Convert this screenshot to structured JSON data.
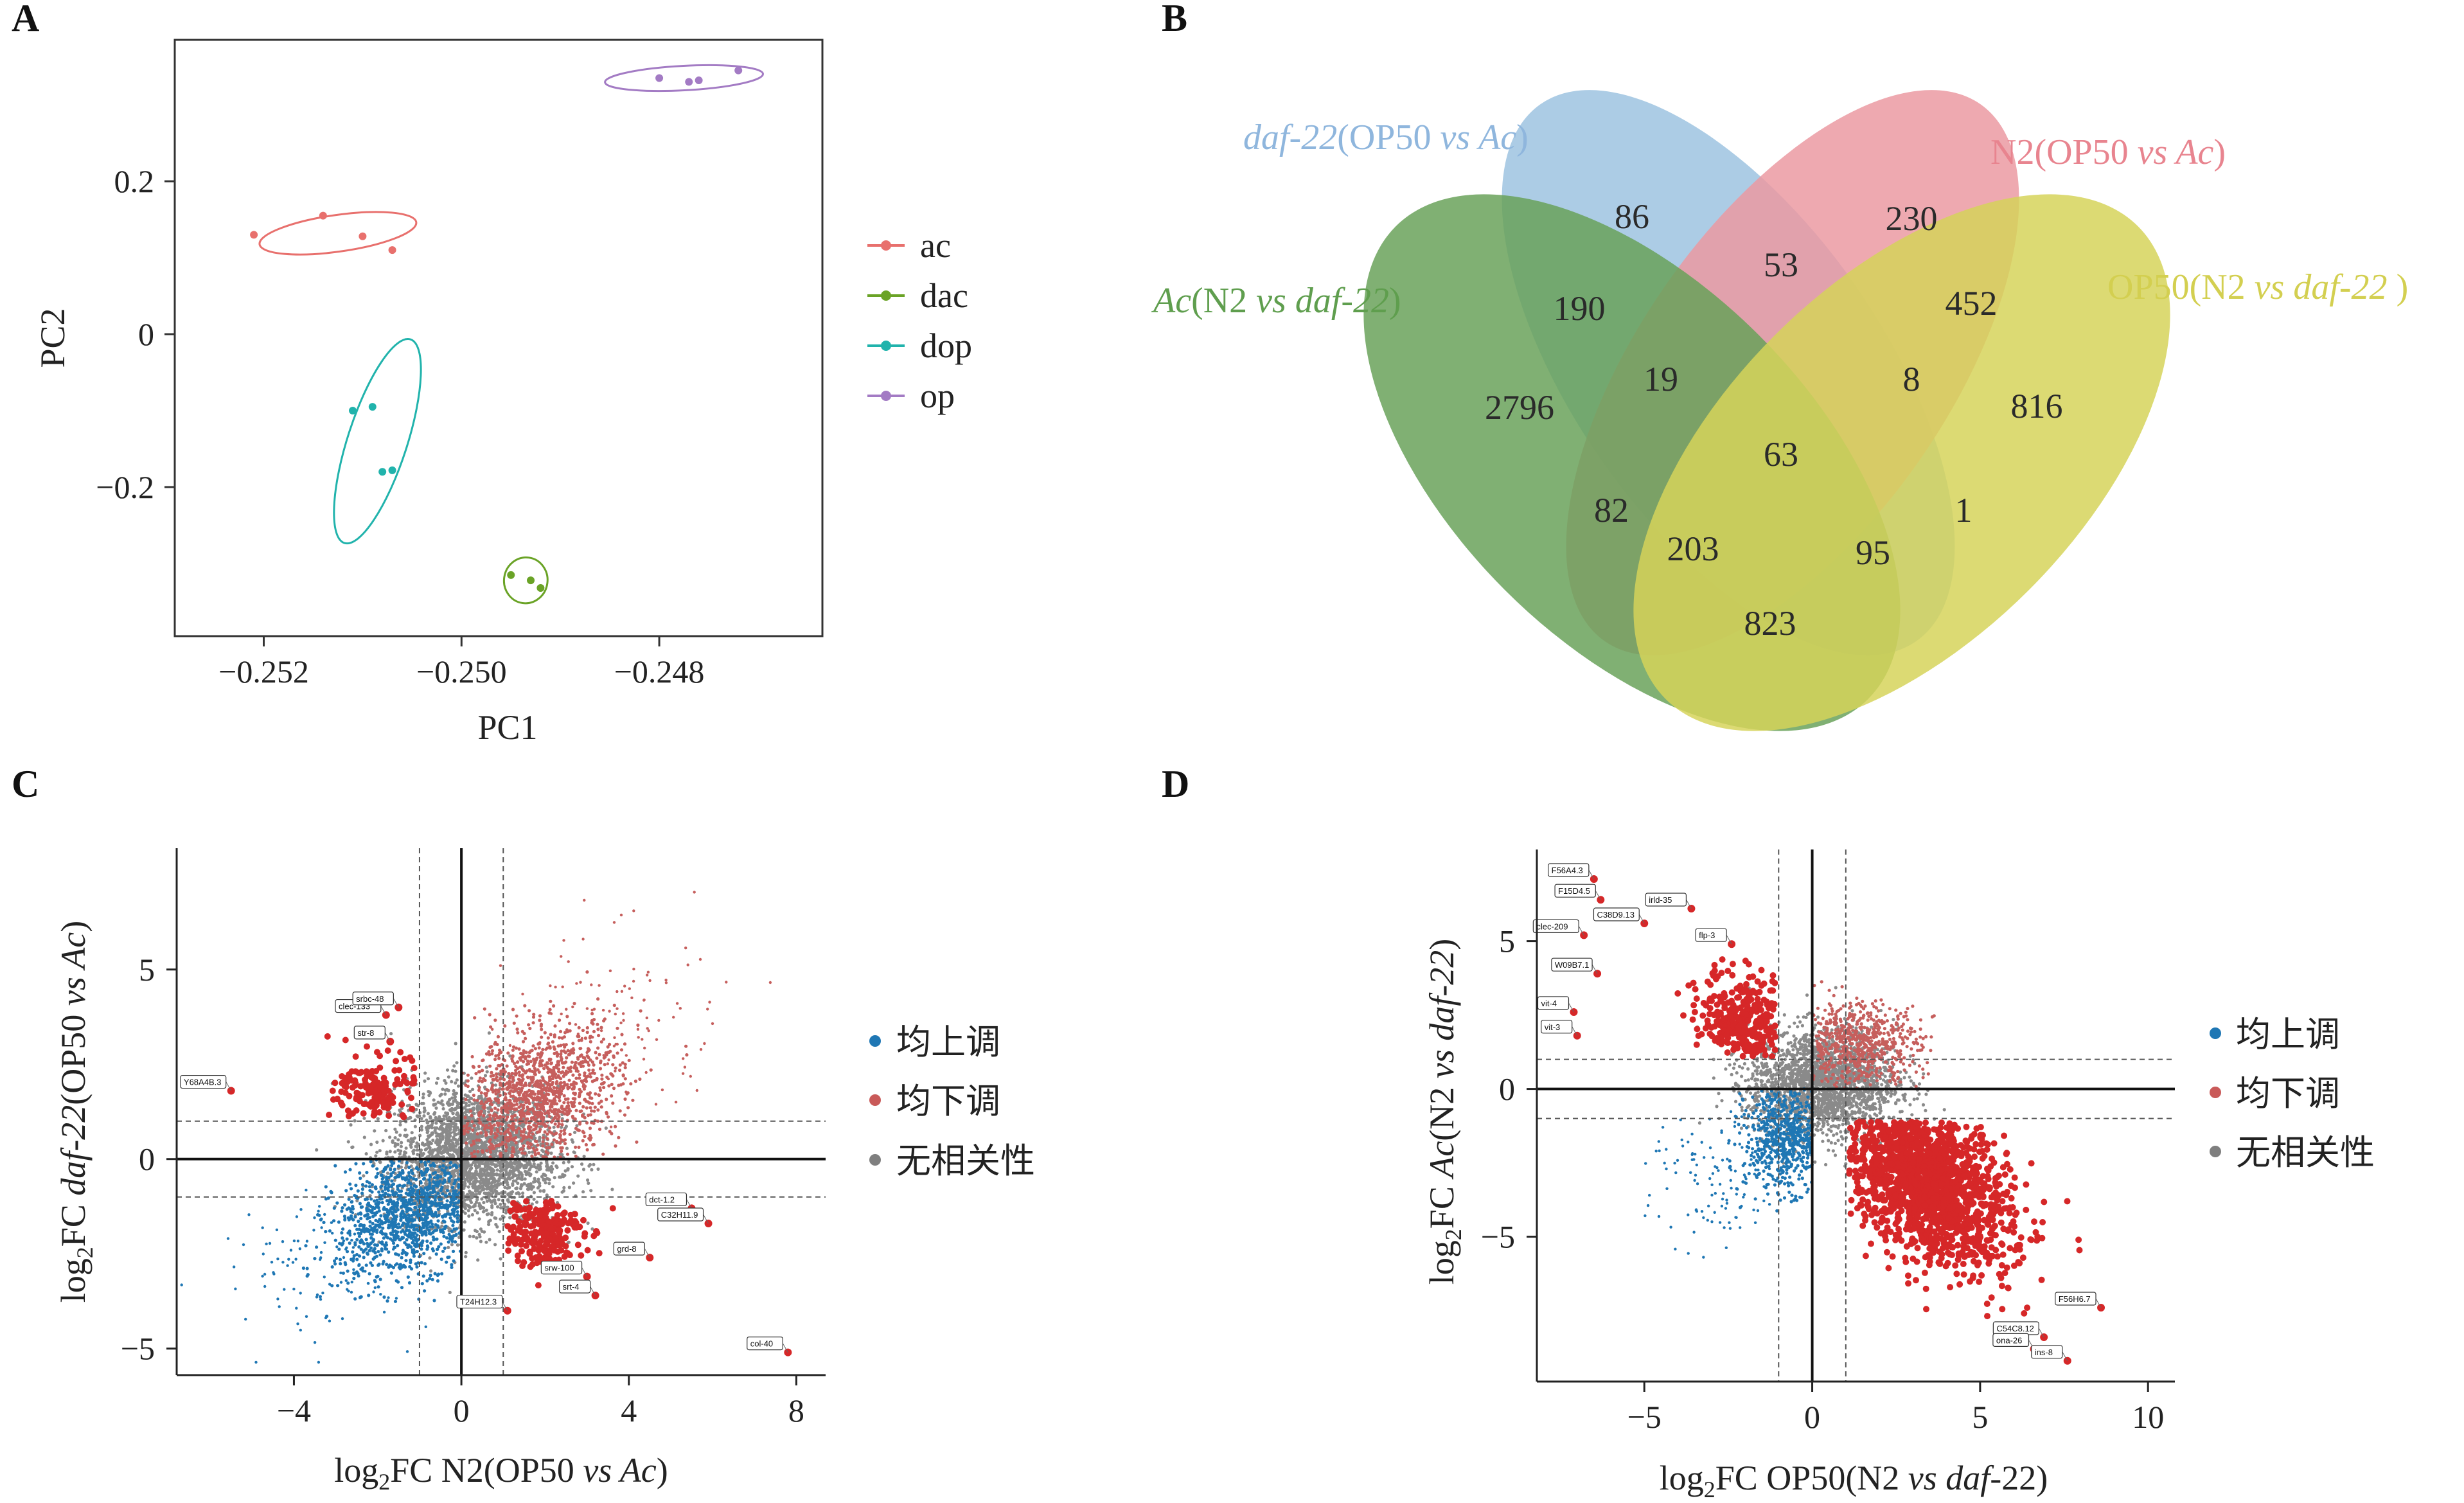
{
  "panels": {
    "A": "A",
    "B": "B",
    "C": "C",
    "D": "D"
  },
  "colors": {
    "up": "#1f77b4",
    "down": "#d62728",
    "none": "#7f7f7f",
    "ac": "#e8706d",
    "dac": "#6aa326",
    "dop": "#21b3ac",
    "op": "#a37bc4"
  },
  "chart_data": [
    {
      "type": "scatter",
      "panel": "A",
      "xlabel": "PC1",
      "ylabel": "PC2",
      "xticks": [
        "−0.252",
        "−0.250",
        "−0.248"
      ],
      "yticks": [
        "−0.2",
        "0",
        "0.2"
      ],
      "legend": [
        "ac",
        "dac",
        "dop",
        "op"
      ],
      "legend_position": "right",
      "series": [
        {
          "name": "ac",
          "points": [
            [
              -0.2521,
              0.13
            ],
            [
              -0.2514,
              0.155
            ],
            [
              -0.251,
              0.128
            ],
            [
              -0.2507,
              0.11
            ]
          ],
          "ellipse": {
            "cx": -0.25125,
            "cy": 0.132,
            "rx": 0.0008,
            "ry": 0.024,
            "tilt": -8
          }
        },
        {
          "name": "dac",
          "points": [
            [
              -0.2495,
              -0.315
            ],
            [
              -0.2493,
              -0.322
            ],
            [
              -0.2492,
              -0.332
            ]
          ],
          "ellipse": {
            "cx": -0.24935,
            "cy": -0.322,
            "rx": 0.00022,
            "ry": 0.03,
            "tilt": 8
          }
        },
        {
          "name": "dop",
          "points": [
            [
              -0.2511,
              -0.1
            ],
            [
              -0.2509,
              -0.095
            ],
            [
              -0.2508,
              -0.18
            ],
            [
              -0.2507,
              -0.178
            ]
          ],
          "ellipse": {
            "cx": -0.25085,
            "cy": -0.14,
            "rx": 0.0003,
            "ry": 0.14,
            "tilt": 18
          }
        },
        {
          "name": "op",
          "points": [
            [
              -0.248,
              0.335
            ],
            [
              -0.2477,
              0.33
            ],
            [
              -0.2476,
              0.332
            ],
            [
              -0.2472,
              0.345
            ]
          ],
          "ellipse": {
            "cx": -0.24775,
            "cy": 0.335,
            "rx": 0.0008,
            "ry": 0.016,
            "tilt": -3
          }
        }
      ]
    },
    {
      "type": "venn",
      "panel": "B",
      "sets": [
        {
          "label_main": "daf-22",
          "label_rest": "(OP50 ",
          "label_vs": "vs",
          "label_sp": " Ac",
          "label_end": ")"
        },
        {
          "label_main": "N2(OP50 ",
          "label_vs": "vs",
          "label_sp": " Ac",
          "label_end": ")"
        },
        {
          "label_main": "Ac",
          "label_rest": "(N2 ",
          "label_vs": "vs",
          "label_sp": " daf-22",
          "label_end": ")"
        },
        {
          "label_main": "OP50(N2 ",
          "label_vs": "vs",
          "label_sp": " daf-22",
          "label_end": " )"
        }
      ],
      "counts": [
        "86",
        "230",
        "53",
        "190",
        "452",
        "2796",
        "19",
        "8",
        "816",
        "63",
        "82",
        "1",
        "203",
        "95",
        "823"
      ]
    },
    {
      "type": "scatter",
      "panel": "C",
      "xlabel_pre": "log",
      "xlabel_sub": "2",
      "xlabel_mid": "FC N2(OP50 ",
      "xlabel_it": "vs Ac",
      "xlabel_end": ")",
      "ylabel_pre": "log",
      "ylabel_sub": "2",
      "ylabel_mid": "FC ",
      "ylabel_it": "daf-22",
      "ylabel_mid2": "(OP50 ",
      "ylabel_it2": "vs Ac",
      "ylabel_end": ")",
      "xlim": [
        -6.8,
        8.7
      ],
      "ylim": [
        -5.7,
        8.2
      ],
      "xticks": [
        "−4",
        "0",
        "4",
        "8"
      ],
      "xtick_values": [
        -4,
        0,
        4,
        8
      ],
      "yticks": [
        "−5",
        "0",
        "5"
      ],
      "ytick_values": [
        -5,
        0,
        5
      ],
      "thresholds": {
        "x": [
          -1,
          1
        ],
        "y": [
          -1,
          1
        ]
      },
      "legend": [
        "均上调",
        "均下调",
        "无相关性"
      ],
      "labeled_genes": [
        {
          "name": "Y68A4B.3",
          "x": -5.5,
          "y": 1.8
        },
        {
          "name": "clec-133",
          "x": -1.8,
          "y": 3.8
        },
        {
          "name": "srbc-48",
          "x": -1.5,
          "y": 4.0
        },
        {
          "name": "str-8",
          "x": -1.7,
          "y": 3.1
        },
        {
          "name": "dct-1.2",
          "x": 5.5,
          "y": -1.3
        },
        {
          "name": "C32H11.9",
          "x": 5.9,
          "y": -1.7
        },
        {
          "name": "grd-8",
          "x": 4.5,
          "y": -2.6
        },
        {
          "name": "srw-100",
          "x": 3.0,
          "y": -3.1
        },
        {
          "name": "srt-4",
          "x": 3.2,
          "y": -3.6
        },
        {
          "name": "T24H12.3",
          "x": 1.1,
          "y": -4.0
        },
        {
          "name": "col-40",
          "x": 7.8,
          "y": -5.1
        }
      ]
    },
    {
      "type": "scatter",
      "panel": "D",
      "xlabel_pre": "log",
      "xlabel_sub": "2",
      "xlabel_mid": "FC OP50(N2 ",
      "xlabel_it": "vs daf",
      "xlabel_end": "-22)",
      "ylabel_pre": "log",
      "ylabel_sub": "2",
      "ylabel_mid": "FC ",
      "ylabel_it": "Ac",
      "ylabel_mid2": "(N2 ",
      "ylabel_it2": "vs daf-22",
      "ylabel_end": ")",
      "xlim": [
        -8.2,
        10.8
      ],
      "ylim": [
        -9.9,
        8.1
      ],
      "xticks": [
        "−5",
        "0",
        "5",
        "10"
      ],
      "xtick_values": [
        -5,
        0,
        5,
        10
      ],
      "yticks": [
        "−5",
        "0",
        "5"
      ],
      "ytick_values": [
        -5,
        0,
        5
      ],
      "thresholds": {
        "x": [
          -1,
          1
        ],
        "y": [
          -1,
          1
        ]
      },
      "legend": [
        "均上调",
        "均下调",
        "无相关性"
      ],
      "labeled_genes": [
        {
          "name": "F56A4.3",
          "x": -6.5,
          "y": 7.1
        },
        {
          "name": "F15D4.5",
          "x": -6.3,
          "y": 6.4
        },
        {
          "name": "C38D9.13",
          "x": -5.0,
          "y": 5.6
        },
        {
          "name": "irld-35",
          "x": -3.6,
          "y": 6.1
        },
        {
          "name": "flp-3",
          "x": -2.4,
          "y": 4.9
        },
        {
          "name": "clec-209",
          "x": -6.8,
          "y": 5.2
        },
        {
          "name": "W09B7.1",
          "x": -6.4,
          "y": 3.9
        },
        {
          "name": "vit-4",
          "x": -7.1,
          "y": 2.6
        },
        {
          "name": "vit-3",
          "x": -7.0,
          "y": 1.8
        },
        {
          "name": "F56H6.7",
          "x": 8.6,
          "y": -7.4
        },
        {
          "name": "C54C8.12",
          "x": 6.9,
          "y": -8.4
        },
        {
          "name": "ona-26",
          "x": 6.6,
          "y": -8.8
        },
        {
          "name": "ins-8",
          "x": 7.6,
          "y": -9.2
        }
      ]
    }
  ]
}
